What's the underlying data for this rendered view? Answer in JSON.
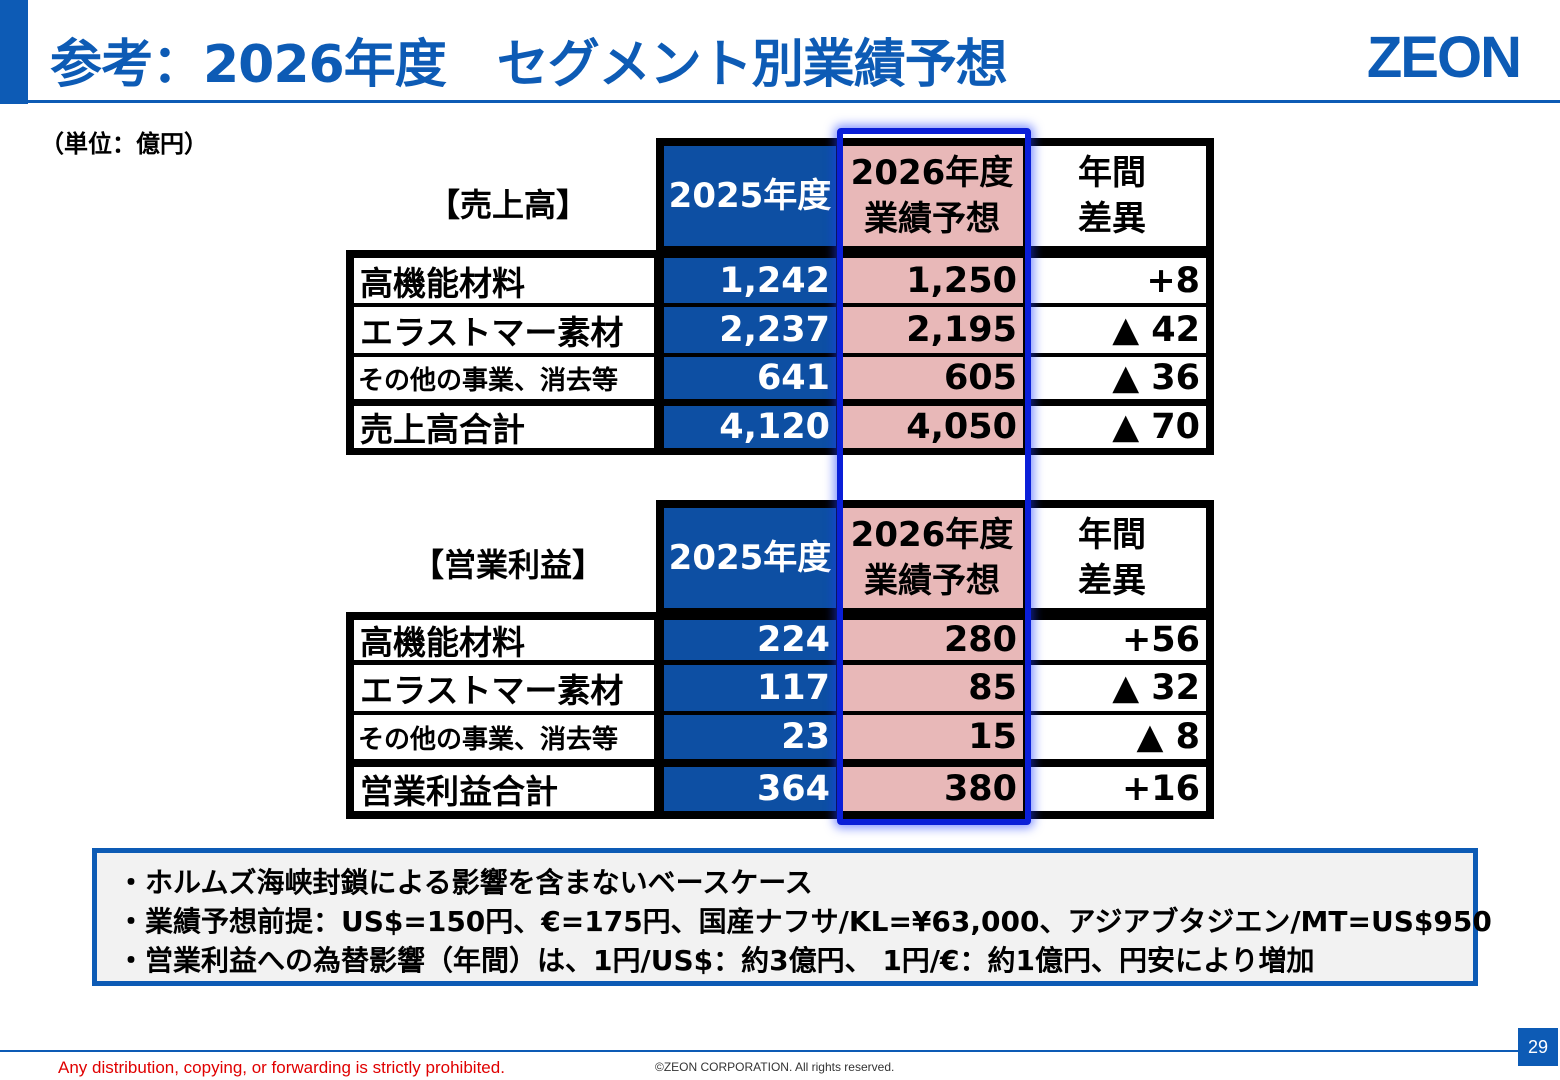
{
  "header": {
    "title": "参考：2026年度　セグメント別業績予想",
    "logo": "ZEON"
  },
  "unit_note": "（単位：億円）",
  "columns": {
    "prev": "2025年度",
    "forecast_line1": "2026年度",
    "forecast_line2": "業績予想",
    "diff_line1": "年間",
    "diff_line2": "差異"
  },
  "sales": {
    "label": "【売上高】",
    "rows": [
      {
        "name": "高機能材料",
        "prev": "1,242",
        "forecast": "1,250",
        "diff": "+8"
      },
      {
        "name": "エラストマー素材",
        "prev": "2,237",
        "forecast": "2,195",
        "diff": "▲ 42"
      },
      {
        "name": "その他の事業、消去等",
        "prev": "641",
        "forecast": "605",
        "diff": "▲ 36"
      },
      {
        "name": "売上高合計",
        "prev": "4,120",
        "forecast": "4,050",
        "diff": "▲ 70"
      }
    ]
  },
  "op_income": {
    "label": "【営業利益】",
    "rows": [
      {
        "name": "高機能材料",
        "prev": "224",
        "forecast": "280",
        "diff": "+56"
      },
      {
        "name": "エラストマー素材",
        "prev": "117",
        "forecast": "85",
        "diff": "▲ 32"
      },
      {
        "name": "その他の事業、消去等",
        "prev": "23",
        "forecast": "15",
        "diff": "▲ 8"
      },
      {
        "name": "営業利益合計",
        "prev": "364",
        "forecast": "380",
        "diff": "+16"
      }
    ]
  },
  "notes": [
    "・ホルムズ海峡封鎖による影響を含まないベースケース",
    "・業績予想前提：US$=150円、€=175円、国産ナフサ/KL=¥63,000、アジアブタジエン/MT=US$950",
    "・営業利益への為替影響（年間）は、1円/US$：約3億円、 1円/€：約1億円、円安により増加"
  ],
  "footer": {
    "page_number": "29",
    "warning": "Any distribution, copying, or forwarding is strictly prohibited.",
    "copyright": "©ZEON CORPORATION. All rights reserved."
  }
}
